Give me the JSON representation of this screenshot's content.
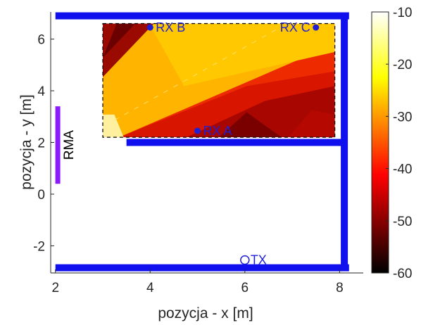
{
  "chart_data": {
    "type": "heatmap",
    "xlabel": "pozycja - x [m]",
    "ylabel": "pozycja - y [m]",
    "xlim": [
      1.9,
      8.5
    ],
    "ylim": [
      -3.05,
      7.05
    ],
    "x_ticks": [
      2,
      4,
      6,
      8
    ],
    "y_ticks": [
      -2,
      0,
      2,
      4,
      6
    ],
    "colorbar": {
      "colormap": "hot",
      "range": [
        -60,
        -10
      ],
      "ticks": [
        -60,
        -50,
        -40,
        -30,
        -20,
        -10
      ]
    },
    "heatmap_region": {
      "x": [
        3.0,
        7.9
      ],
      "y": [
        2.2,
        6.6
      ]
    },
    "walls": [
      {
        "x": [
          2.0,
          8.2
        ],
        "y": [
          6.9,
          6.9
        ]
      },
      {
        "x": [
          2.0,
          8.2
        ],
        "y": [
          -2.85,
          -2.85
        ]
      },
      {
        "x": [
          8.1,
          8.1
        ],
        "y": [
          -2.85,
          6.9
        ]
      },
      {
        "x": [
          3.5,
          8.1
        ],
        "y": [
          2.0,
          2.0
        ]
      }
    ],
    "rma": {
      "label": "RMA",
      "x": 2.05,
      "y": [
        0.4,
        3.4
      ],
      "color": "#8b1aff"
    },
    "points": [
      {
        "label": "RX A",
        "x": 5.0,
        "y": 2.45,
        "filled": true
      },
      {
        "label": "RX B",
        "x": 4.0,
        "y": 6.45,
        "filled": true
      },
      {
        "label": "RX C",
        "x": 7.5,
        "y": 6.45,
        "filled": true
      },
      {
        "label": "TX",
        "x": 6.0,
        "y": -2.55,
        "filled": false
      }
    ],
    "colors": {
      "wall": "#1010ee",
      "marker": "#1f1fd6"
    }
  }
}
